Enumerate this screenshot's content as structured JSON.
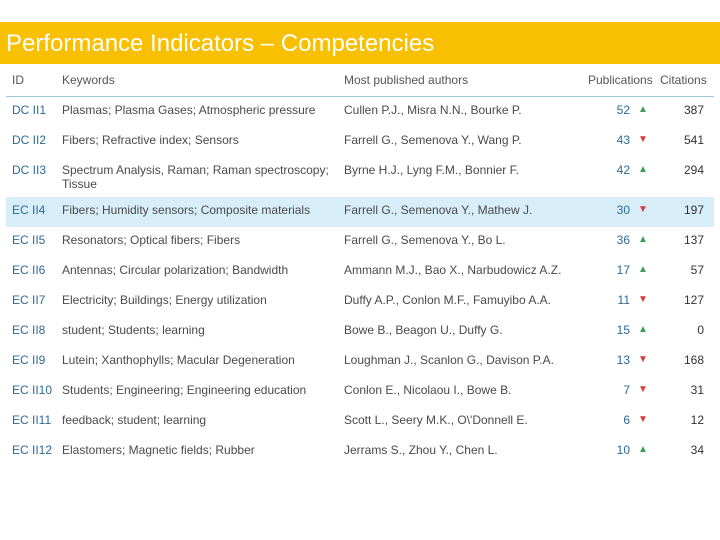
{
  "slide": {
    "title": "Performance Indicators – Competencies"
  },
  "table": {
    "headers": {
      "id": "ID",
      "keywords": "Keywords",
      "authors": "Most published authors",
      "publications": "Publications",
      "citations": "Citations"
    },
    "rows": [
      {
        "id": "DC II1",
        "keywords": "Plasmas; Plasma Gases; Atmospheric pressure",
        "authors": "Cullen P.J., Misra N.N., Bourke P.",
        "publications": "52",
        "trend": "up",
        "citations": "387"
      },
      {
        "id": "DC II2",
        "keywords": "Fibers; Refractive index; Sensors",
        "authors": "Farrell G., Semenova Y., Wang P.",
        "publications": "43",
        "trend": "down",
        "citations": "541"
      },
      {
        "id": "DC II3",
        "keywords": "Spectrum Analysis, Raman; Raman spectroscopy; Tissue",
        "authors": "Byrne H.J., Lyng F.M., Bonnier F.",
        "publications": "42",
        "trend": "up",
        "citations": "294"
      },
      {
        "id": "EC II4",
        "keywords": "Fibers; Humidity sensors; Composite materials",
        "authors": "Farrell G., Semenova Y., Mathew J.",
        "publications": "30",
        "trend": "down",
        "citations": "197",
        "highlight": true
      },
      {
        "id": "EC II5",
        "keywords": "Resonators; Optical fibers; Fibers",
        "authors": "Farrell G., Semenova Y., Bo L.",
        "publications": "36",
        "trend": "up",
        "citations": "137"
      },
      {
        "id": "EC II6",
        "keywords": "Antennas; Circular polarization; Bandwidth",
        "authors": "Ammann M.J., Bao X., Narbudowicz A.Z.",
        "publications": "17",
        "trend": "up",
        "citations": "57"
      },
      {
        "id": "EC II7",
        "keywords": "Electricity; Buildings; Energy utilization",
        "authors": "Duffy A.P., Conlon M.F., Famuyibo A.A.",
        "publications": "11",
        "trend": "down",
        "citations": "127"
      },
      {
        "id": "EC II8",
        "keywords": "student; Students; learning",
        "authors": "Bowe B., Beagon U., Duffy G.",
        "publications": "15",
        "trend": "up",
        "citations": "0"
      },
      {
        "id": "EC II9",
        "keywords": "Lutein; Xanthophylls; Macular Degeneration",
        "authors": "Loughman J., Scanlon G., Davison P.A.",
        "publications": "13",
        "trend": "down",
        "citations": "168"
      },
      {
        "id": "EC II10",
        "keywords": "Students; Engineering; Engineering education",
        "authors": "Conlon E., Nicolaou I., Bowe B.",
        "publications": "7",
        "trend": "down",
        "citations": "31"
      },
      {
        "id": "EC II11",
        "keywords": "feedback; student; learning",
        "authors": "Scott L., Seery M.K., O\\'Donnell E.",
        "publications": "6",
        "trend": "down",
        "citations": "12"
      },
      {
        "id": "EC II12",
        "keywords": "Elastomers; Magnetic fields; Rubber",
        "authors": "Jerrams S., Zhou Y., Chen L.",
        "publications": "10",
        "trend": "up",
        "citations": "34"
      }
    ]
  },
  "icons": {
    "up": "triangle-up-icon",
    "down": "triangle-down-icon"
  },
  "colors": {
    "banner": "#f8c000",
    "highlight_row": "#d7eef8",
    "trend_up": "#3aa05a",
    "trend_down": "#d93a3a"
  }
}
